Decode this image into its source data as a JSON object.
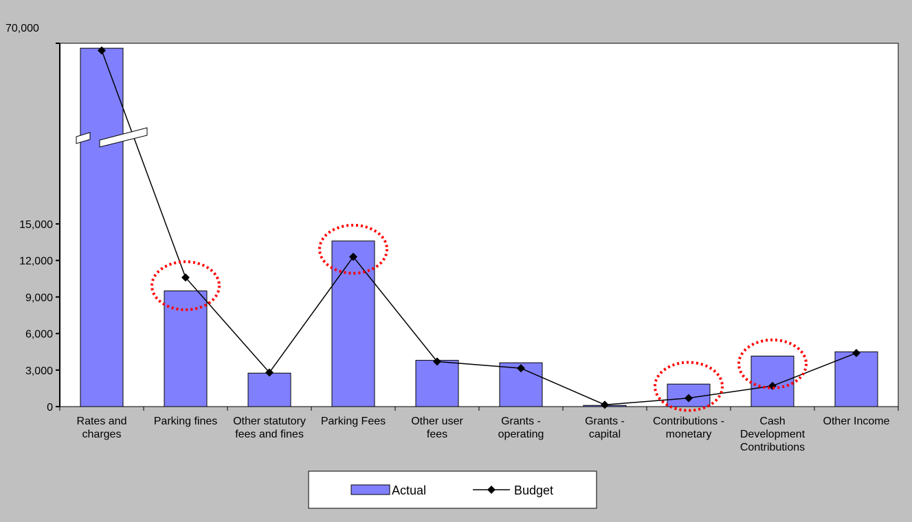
{
  "chart_data": {
    "type": "bar",
    "title": "",
    "xlabel": "",
    "ylabel": "",
    "categories": [
      [
        "Rates and",
        "charges"
      ],
      [
        "Parking fines"
      ],
      [
        "Other statutory",
        "fees and fines"
      ],
      [
        "Parking Fees"
      ],
      [
        "Other user",
        "fees"
      ],
      [
        "Grants -",
        "operating"
      ],
      [
        "Grants -",
        "capital"
      ],
      [
        "Contributions -",
        "monetary"
      ],
      [
        "Cash",
        "Development",
        "Contributions"
      ],
      [
        "Other Income"
      ]
    ],
    "y_ticks_lower": [
      "0",
      "3,000",
      "6,000",
      "9,000",
      "12,000",
      "15,000"
    ],
    "y_tick_top": "70,000",
    "axis_break": true,
    "series": [
      {
        "name": "Actual",
        "type": "bar",
        "color": "#8080ff",
        "values": [
          68500,
          9500,
          2750,
          13600,
          3800,
          3600,
          100,
          1850,
          4150,
          4500
        ]
      },
      {
        "name": "Budget",
        "type": "line",
        "color": "#000000",
        "values": [
          67800,
          10600,
          2800,
          12300,
          3700,
          3150,
          150,
          700,
          1700,
          4400
        ]
      }
    ],
    "highlighted_categories": [
      1,
      3,
      7,
      8
    ],
    "highlight_color": "#ff0000",
    "legend": {
      "placement": "bottom",
      "entries": [
        "Actual",
        "Budget"
      ]
    },
    "grid": false
  }
}
